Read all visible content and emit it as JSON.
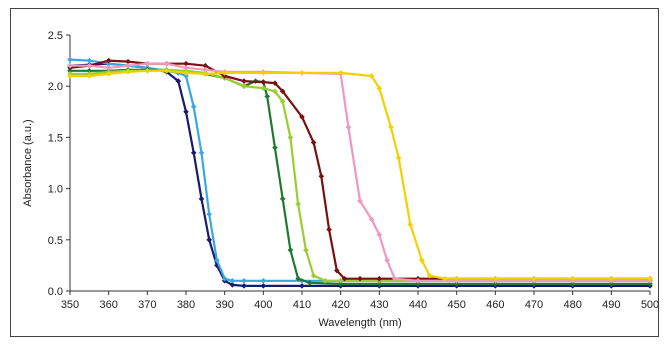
{
  "chart_data": {
    "type": "line",
    "title": "",
    "xlabel": "Wavelength (nm)",
    "ylabel": "Absorbance (a.u.)",
    "xlim": [
      350,
      500
    ],
    "ylim": [
      0,
      2.5
    ],
    "xticks": [
      "350",
      "360",
      "370",
      "380",
      "390",
      "400",
      "410",
      "420",
      "430",
      "440",
      "450",
      "460",
      "470",
      "480",
      "490",
      "500"
    ],
    "yticks": [
      "0.0",
      "0.5",
      "1.0",
      "1.5",
      "2.0",
      "2.5"
    ],
    "grid": false,
    "legend": "none",
    "series": [
      {
        "color": "#1a1a6e",
        "marker": "diamond",
        "points": [
          [
            350,
            2.2
          ],
          [
            355,
            2.21
          ],
          [
            360,
            2.22
          ],
          [
            365,
            2.2
          ],
          [
            370,
            2.18
          ],
          [
            375,
            2.14
          ],
          [
            378,
            2.05
          ],
          [
            380,
            1.75
          ],
          [
            382,
            1.35
          ],
          [
            384,
            0.9
          ],
          [
            386,
            0.5
          ],
          [
            388,
            0.25
          ],
          [
            390,
            0.1
          ],
          [
            392,
            0.06
          ],
          [
            395,
            0.05
          ],
          [
            400,
            0.05
          ],
          [
            410,
            0.05
          ],
          [
            420,
            0.05
          ],
          [
            430,
            0.05
          ],
          [
            440,
            0.05
          ],
          [
            450,
            0.05
          ],
          [
            460,
            0.05
          ],
          [
            470,
            0.05
          ],
          [
            480,
            0.05
          ],
          [
            490,
            0.05
          ],
          [
            500,
            0.05
          ]
        ]
      },
      {
        "color": "#3aa8e0",
        "marker": "diamond",
        "points": [
          [
            350,
            2.26
          ],
          [
            355,
            2.25
          ],
          [
            360,
            2.22
          ],
          [
            365,
            2.2
          ],
          [
            370,
            2.18
          ],
          [
            375,
            2.15
          ],
          [
            378,
            2.13
          ],
          [
            380,
            2.1
          ],
          [
            382,
            1.8
          ],
          [
            384,
            1.35
          ],
          [
            386,
            0.75
          ],
          [
            388,
            0.3
          ],
          [
            390,
            0.12
          ],
          [
            392,
            0.1
          ],
          [
            395,
            0.1
          ],
          [
            400,
            0.1
          ],
          [
            410,
            0.1
          ],
          [
            420,
            0.1
          ],
          [
            430,
            0.1
          ],
          [
            440,
            0.1
          ],
          [
            450,
            0.1
          ],
          [
            460,
            0.1
          ],
          [
            470,
            0.1
          ],
          [
            480,
            0.1
          ],
          [
            490,
            0.1
          ],
          [
            500,
            0.1
          ]
        ]
      },
      {
        "color": "#1e7a2e",
        "marker": "diamond",
        "points": [
          [
            350,
            2.15
          ],
          [
            355,
            2.15
          ],
          [
            360,
            2.15
          ],
          [
            365,
            2.16
          ],
          [
            370,
            2.16
          ],
          [
            375,
            2.16
          ],
          [
            380,
            2.14
          ],
          [
            385,
            2.12
          ],
          [
            390,
            2.08
          ],
          [
            395,
            2.0
          ],
          [
            398,
            2.05
          ],
          [
            400,
            2.04
          ],
          [
            401,
            1.9
          ],
          [
            403,
            1.4
          ],
          [
            405,
            0.9
          ],
          [
            407,
            0.4
          ],
          [
            409,
            0.12
          ],
          [
            412,
            0.08
          ],
          [
            420,
            0.07
          ],
          [
            430,
            0.07
          ],
          [
            440,
            0.07
          ],
          [
            450,
            0.07
          ],
          [
            460,
            0.07
          ],
          [
            470,
            0.07
          ],
          [
            480,
            0.07
          ],
          [
            490,
            0.07
          ],
          [
            500,
            0.07
          ]
        ]
      },
      {
        "color": "#9acd32",
        "marker": "diamond",
        "points": [
          [
            350,
            2.12
          ],
          [
            355,
            2.12
          ],
          [
            360,
            2.14
          ],
          [
            365,
            2.15
          ],
          [
            370,
            2.15
          ],
          [
            375,
            2.16
          ],
          [
            380,
            2.15
          ],
          [
            385,
            2.13
          ],
          [
            390,
            2.08
          ],
          [
            395,
            2.0
          ],
          [
            400,
            1.98
          ],
          [
            403,
            1.95
          ],
          [
            405,
            1.85
          ],
          [
            407,
            1.5
          ],
          [
            409,
            0.85
          ],
          [
            411,
            0.4
          ],
          [
            413,
            0.15
          ],
          [
            416,
            0.1
          ],
          [
            420,
            0.1
          ],
          [
            430,
            0.1
          ],
          [
            440,
            0.1
          ],
          [
            450,
            0.1
          ],
          [
            460,
            0.1
          ],
          [
            470,
            0.1
          ],
          [
            480,
            0.1
          ],
          [
            490,
            0.1
          ],
          [
            500,
            0.1
          ]
        ]
      },
      {
        "color": "#7a1010",
        "marker": "diamond",
        "points": [
          [
            350,
            2.18
          ],
          [
            355,
            2.2
          ],
          [
            360,
            2.25
          ],
          [
            365,
            2.24
          ],
          [
            370,
            2.22
          ],
          [
            375,
            2.22
          ],
          [
            380,
            2.22
          ],
          [
            385,
            2.2
          ],
          [
            390,
            2.1
          ],
          [
            395,
            2.05
          ],
          [
            400,
            2.04
          ],
          [
            403,
            2.03
          ],
          [
            405,
            1.95
          ],
          [
            410,
            1.7
          ],
          [
            413,
            1.45
          ],
          [
            415,
            1.12
          ],
          [
            417,
            0.6
          ],
          [
            419,
            0.2
          ],
          [
            421,
            0.12
          ],
          [
            425,
            0.12
          ],
          [
            430,
            0.12
          ],
          [
            440,
            0.12
          ],
          [
            450,
            0.12
          ],
          [
            460,
            0.12
          ],
          [
            470,
            0.12
          ],
          [
            480,
            0.12
          ],
          [
            490,
            0.12
          ],
          [
            500,
            0.12
          ]
        ]
      },
      {
        "color": "#f098c0",
        "marker": "diamond",
        "points": [
          [
            350,
            2.2
          ],
          [
            355,
            2.2
          ],
          [
            360,
            2.18
          ],
          [
            365,
            2.2
          ],
          [
            370,
            2.22
          ],
          [
            375,
            2.22
          ],
          [
            380,
            2.18
          ],
          [
            385,
            2.16
          ],
          [
            390,
            2.14
          ],
          [
            400,
            2.14
          ],
          [
            410,
            2.13
          ],
          [
            420,
            2.12
          ],
          [
            422,
            1.6
          ],
          [
            425,
            0.88
          ],
          [
            428,
            0.7
          ],
          [
            430,
            0.55
          ],
          [
            432,
            0.3
          ],
          [
            434,
            0.12
          ],
          [
            440,
            0.1
          ],
          [
            450,
            0.1
          ],
          [
            460,
            0.1
          ],
          [
            470,
            0.1
          ],
          [
            480,
            0.1
          ],
          [
            490,
            0.1
          ],
          [
            500,
            0.1
          ]
        ]
      },
      {
        "color": "#f5d000",
        "marker": "diamond",
        "points": [
          [
            350,
            2.1
          ],
          [
            355,
            2.1
          ],
          [
            360,
            2.12
          ],
          [
            365,
            2.14
          ],
          [
            370,
            2.15
          ],
          [
            375,
            2.15
          ],
          [
            380,
            2.13
          ],
          [
            385,
            2.12
          ],
          [
            390,
            2.13
          ],
          [
            400,
            2.13
          ],
          [
            410,
            2.13
          ],
          [
            420,
            2.13
          ],
          [
            428,
            2.1
          ],
          [
            430,
            1.98
          ],
          [
            433,
            1.6
          ],
          [
            435,
            1.3
          ],
          [
            438,
            0.65
          ],
          [
            441,
            0.3
          ],
          [
            443,
            0.15
          ],
          [
            447,
            0.12
          ],
          [
            450,
            0.12
          ],
          [
            460,
            0.12
          ],
          [
            470,
            0.12
          ],
          [
            480,
            0.12
          ],
          [
            490,
            0.12
          ],
          [
            500,
            0.12
          ]
        ]
      }
    ]
  }
}
